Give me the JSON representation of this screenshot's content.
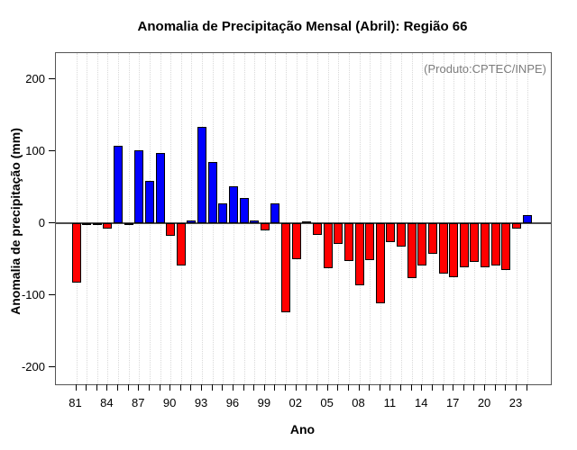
{
  "title": "Anomalia de Precipitação Mensal (Abril): Região 66",
  "annotation": "(Produto:CPTEC/INPE)",
  "chart_data": {
    "type": "bar",
    "title": "Anomalia de Precipitação Mensal (Abril): Região 66",
    "xlabel": "Ano",
    "ylabel": "Anomalia de precipitação (mm)",
    "ylim": [
      -230,
      240
    ],
    "y_ticks": [
      -200,
      -100,
      0,
      100,
      200
    ],
    "grid": "vertical-dotted",
    "legend": "none",
    "x_label_every": 3,
    "categories": [
      "81",
      "82",
      "83",
      "84",
      "85",
      "86",
      "87",
      "88",
      "89",
      "90",
      "91",
      "92",
      "93",
      "94",
      "95",
      "96",
      "97",
      "98",
      "99",
      "00",
      "01",
      "02",
      "03",
      "04",
      "05",
      "06",
      "07",
      "08",
      "09",
      "10",
      "11",
      "12",
      "13",
      "14",
      "15",
      "16",
      "17",
      "18",
      "19",
      "20",
      "21",
      "22",
      "23",
      "24"
    ],
    "values": [
      -83,
      -2,
      -2,
      -7,
      107,
      -3,
      101,
      59,
      97,
      -18,
      -59,
      4,
      134,
      85,
      28,
      51,
      35,
      4,
      -10,
      28,
      -124,
      -50,
      2,
      -16,
      -63,
      -29,
      -52,
      -86,
      -51,
      -111,
      -26,
      -32,
      -76,
      -59,
      -43,
      -70,
      -75,
      -61,
      -54,
      -61,
      -59,
      -65,
      -7,
      11
    ],
    "positive_color": "#0000ff",
    "negative_color": "#ff0000",
    "bar_border_color": "#000000",
    "annotation_color": "#7d7d7d"
  }
}
